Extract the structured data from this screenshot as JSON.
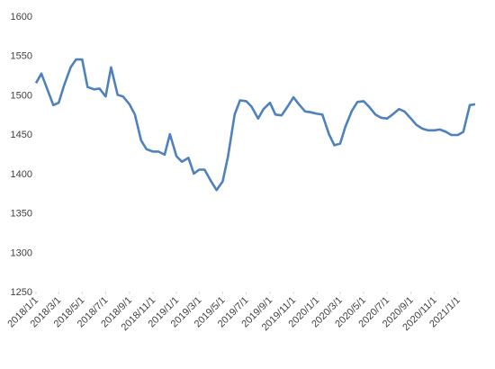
{
  "chart_data": {
    "type": "line",
    "x": [
      "2018/1/1",
      "2018/1/15",
      "2018/2/1",
      "2018/2/15",
      "2018/3/1",
      "2018/3/15",
      "2018/4/1",
      "2018/4/15",
      "2018/5/1",
      "2018/5/15",
      "2018/6/1",
      "2018/6/15",
      "2018/7/1",
      "2018/7/15",
      "2018/8/1",
      "2018/8/15",
      "2018/9/1",
      "2018/9/15",
      "2018/10/1",
      "2018/10/15",
      "2018/11/1",
      "2018/11/15",
      "2018/12/1",
      "2018/12/15",
      "2019/1/1",
      "2019/1/15",
      "2019/2/1",
      "2019/2/15",
      "2019/3/1",
      "2019/3/15",
      "2019/4/1",
      "2019/4/15",
      "2019/5/1",
      "2019/5/15",
      "2019/6/1",
      "2019/6/15",
      "2019/7/1",
      "2019/7/15",
      "2019/8/1",
      "2019/8/15",
      "2019/9/1",
      "2019/9/15",
      "2019/10/1",
      "2019/10/15",
      "2019/11/1",
      "2019/11/15",
      "2019/12/1",
      "2019/12/15",
      "2020/1/1",
      "2020/1/15",
      "2020/2/1",
      "2020/2/15",
      "2020/3/1",
      "2020/3/15",
      "2020/4/1",
      "2020/4/15",
      "2020/5/1",
      "2020/5/15",
      "2020/6/1",
      "2020/6/15",
      "2020/7/1",
      "2020/7/15",
      "2020/8/1",
      "2020/8/15",
      "2020/9/1",
      "2020/9/15",
      "2020/10/1",
      "2020/10/15",
      "2020/11/1",
      "2020/11/15",
      "2020/12/1",
      "2020/12/15",
      "2021/1/1",
      "2021/1/15",
      "2021/2/1",
      "2021/2/15"
    ],
    "series": [
      {
        "color": "#4f81bd",
        "values": [
          1515,
          1527,
          1505,
          1487,
          1490,
          1512,
          1535,
          1545,
          1545,
          1510,
          1507,
          1508,
          1498,
          1535,
          1500,
          1498,
          1488,
          1475,
          1442,
          1431,
          1428,
          1428,
          1424,
          1450,
          1422,
          1415,
          1420,
          1400,
          1405,
          1405,
          1390,
          1379,
          1390,
          1422,
          1475,
          1493,
          1492,
          1485,
          1470,
          1482,
          1490,
          1475,
          1474,
          1484,
          1497,
          1488,
          1479,
          1478,
          1476,
          1475,
          1450,
          1436,
          1438,
          1460,
          1480,
          1491,
          1492,
          1485,
          1475,
          1471,
          1470,
          1475,
          1482,
          1479,
          1470,
          1462,
          1457,
          1455,
          1455,
          1456,
          1453,
          1449,
          1449,
          1453,
          1487,
          1488
        ]
      }
    ],
    "xlim": [
      "2018/1/1",
      "2021/3/1"
    ],
    "xticks": [
      "2018/1/1",
      "2018/3/1",
      "2018/5/1",
      "2018/7/1",
      "2018/9/1",
      "2018/11/1",
      "2019/1/1",
      "2019/3/1",
      "2019/5/1",
      "2019/7/1",
      "2019/9/1",
      "2019/11/1",
      "2020/1/1",
      "2020/3/1",
      "2020/5/1",
      "2020/7/1",
      "2020/9/1",
      "2020/11/1",
      "2021/1/1"
    ],
    "ylim": [
      1250,
      1600
    ],
    "yticks": [
      1250,
      1300,
      1350,
      1400,
      1450,
      1500,
      1550,
      1600
    ],
    "grid": false
  }
}
